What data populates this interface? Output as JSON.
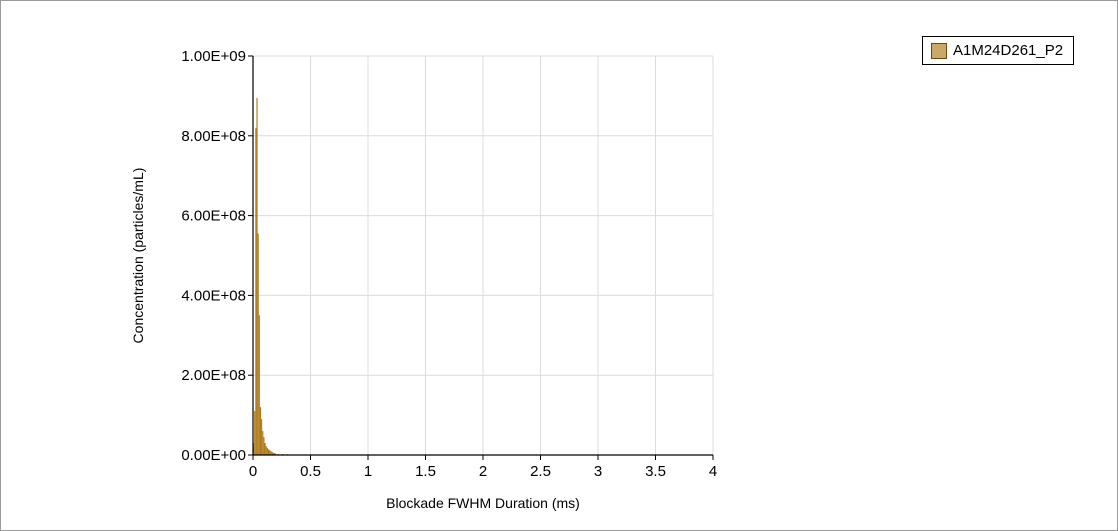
{
  "chart_data": {
    "type": "bar",
    "title": "",
    "xlabel": "Blockade FWHM Duration (ms)",
    "ylabel": "Concentration (particles/mL)",
    "xlim": [
      0,
      4
    ],
    "ylim": [
      0,
      1000000000
    ],
    "grid": true,
    "legend_position": "top-right",
    "x_ticks": [
      "0",
      "0.5",
      "1",
      "1.5",
      "2",
      "2.5",
      "3",
      "3.5",
      "4"
    ],
    "y_ticks": [
      "0.00E+00",
      "2.00E+08",
      "4.00E+08",
      "6.00E+08",
      "8.00E+08",
      "1.00E+09"
    ],
    "bar_width": 0.01,
    "series": [
      {
        "name": "A1M24D261_P2",
        "color": "#b07a1a",
        "legend_fill": "#c9a86a",
        "x": [
          0.005,
          0.015,
          0.025,
          0.035,
          0.045,
          0.055,
          0.065,
          0.075,
          0.085,
          0.095,
          0.105,
          0.115,
          0.125,
          0.135,
          0.145,
          0.155,
          0.165,
          0.175,
          0.185,
          0.195,
          0.22,
          0.26,
          0.3,
          0.35
        ],
        "values": [
          30000000,
          110000000,
          820000000,
          895000000,
          555000000,
          350000000,
          120000000,
          90000000,
          60000000,
          45000000,
          30000000,
          22000000,
          18000000,
          14000000,
          12000000,
          10000000,
          8000000,
          6000000,
          5000000,
          4000000,
          3000000,
          2500000,
          2000000,
          1500000
        ]
      }
    ]
  }
}
